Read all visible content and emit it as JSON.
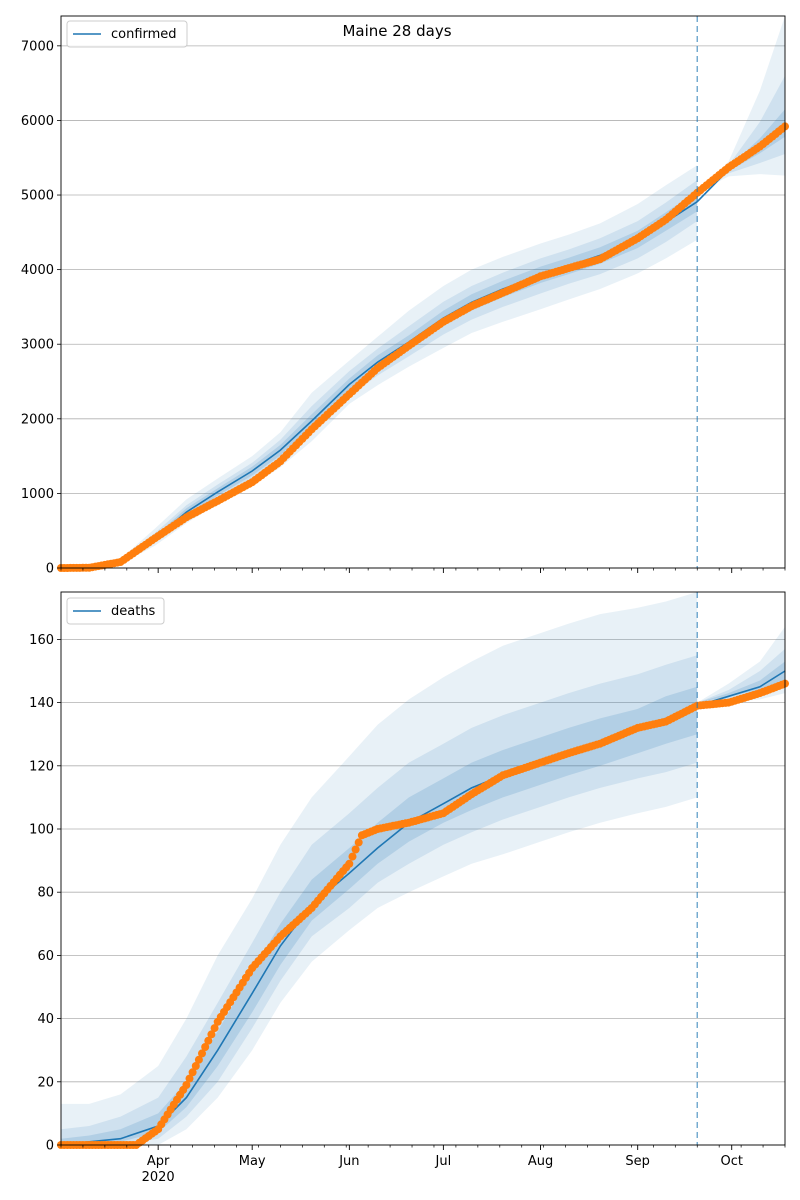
{
  "colors": {
    "model_line": "#1f77b4",
    "observed": "#ff7f0e",
    "band": "#1f77b4",
    "grid": "#b0b0b0",
    "forecast_marker": "#1f77b4"
  },
  "chart_data": [
    {
      "type": "line",
      "title": "Maine 28 days",
      "xlabel": "",
      "ylabel": "",
      "x_range": [
        "2020-03-01",
        "2020-10-18"
      ],
      "ylim": [
        0,
        7400
      ],
      "yticks": [
        0,
        1000,
        2000,
        3000,
        4000,
        5000,
        6000,
        7000
      ],
      "forecast_start": "2020-09-20",
      "grid": "horizontal",
      "legend_placement": "top-left",
      "legend": [
        "confirmed"
      ],
      "series": [
        {
          "name": "confirmed",
          "kind": "model-median",
          "x": [
            "2020-03-01",
            "2020-03-10",
            "2020-03-20",
            "2020-03-31",
            "2020-04-10",
            "2020-04-20",
            "2020-05-01",
            "2020-05-10",
            "2020-05-20",
            "2020-06-01",
            "2020-06-10",
            "2020-06-20",
            "2020-07-01",
            "2020-07-10",
            "2020-07-20",
            "2020-08-01",
            "2020-08-10",
            "2020-08-20",
            "2020-09-01",
            "2020-09-10",
            "2020-09-20",
            "2020-09-30",
            "2020-10-10",
            "2020-10-18"
          ],
          "y": [
            0,
            5,
            80,
            400,
            750,
            1020,
            1300,
            1580,
            1970,
            2460,
            2760,
            3030,
            3350,
            3560,
            3740,
            3930,
            4050,
            4190,
            4400,
            4640,
            4910,
            5340,
            5640,
            5920
          ]
        },
        {
          "name": "observed",
          "kind": "observed-points",
          "x": [
            "2020-03-01",
            "2020-03-10",
            "2020-03-20",
            "2020-03-31",
            "2020-04-10",
            "2020-04-20",
            "2020-05-01",
            "2020-05-10",
            "2020-05-20",
            "2020-06-01",
            "2020-06-10",
            "2020-06-20",
            "2020-07-01",
            "2020-07-10",
            "2020-07-20",
            "2020-08-01",
            "2020-08-10",
            "2020-08-20",
            "2020-09-01",
            "2020-09-10",
            "2020-09-20",
            "2020-09-30",
            "2020-10-10",
            "2020-10-18"
          ],
          "y": [
            0,
            3,
            80,
            400,
            680,
            900,
            1150,
            1430,
            1860,
            2330,
            2680,
            2980,
            3300,
            3510,
            3690,
            3910,
            4020,
            4140,
            4420,
            4670,
            5030,
            5370,
            5650,
            5920
          ]
        }
      ],
      "bands": [
        {
          "x": [
            "2020-03-01",
            "2020-03-10",
            "2020-03-20",
            "2020-03-31",
            "2020-04-10",
            "2020-04-20",
            "2020-05-01",
            "2020-05-10",
            "2020-05-20",
            "2020-06-01",
            "2020-06-10",
            "2020-06-20",
            "2020-07-01",
            "2020-07-10",
            "2020-07-20",
            "2020-08-01",
            "2020-08-10",
            "2020-08-20",
            "2020-09-01",
            "2020-09-10",
            "2020-09-20"
          ],
          "lower": [
            0,
            0,
            50,
            300,
            600,
            860,
            1100,
            1350,
            1700,
            2200,
            2450,
            2700,
            2950,
            3150,
            3300,
            3470,
            3600,
            3740,
            3950,
            4150,
            4400
          ],
          "upper": [
            0,
            15,
            120,
            530,
            920,
            1200,
            1500,
            1820,
            2350,
            2780,
            3100,
            3450,
            3780,
            4000,
            4170,
            4350,
            4470,
            4620,
            4880,
            5130,
            5400
          ]
        },
        {
          "x": [
            "2020-03-01",
            "2020-03-10",
            "2020-03-20",
            "2020-03-31",
            "2020-04-10",
            "2020-04-20",
            "2020-05-01",
            "2020-05-10",
            "2020-05-20",
            "2020-06-01",
            "2020-06-10",
            "2020-06-20",
            "2020-07-01",
            "2020-07-10",
            "2020-07-20",
            "2020-08-01",
            "2020-08-10",
            "2020-08-20",
            "2020-09-01",
            "2020-09-10",
            "2020-09-20"
          ],
          "lower": [
            0,
            0,
            60,
            340,
            660,
            920,
            1180,
            1440,
            1810,
            2300,
            2580,
            2840,
            3130,
            3330,
            3500,
            3680,
            3810,
            3940,
            4150,
            4370,
            4650
          ],
          "upper": [
            0,
            10,
            105,
            470,
            840,
            1120,
            1410,
            1720,
            2170,
            2640,
            2940,
            3240,
            3570,
            3780,
            3960,
            4150,
            4270,
            4420,
            4650,
            4900,
            5200
          ]
        },
        {
          "x": [
            "2020-03-01",
            "2020-03-10",
            "2020-03-20",
            "2020-03-31",
            "2020-04-10",
            "2020-04-20",
            "2020-05-01",
            "2020-05-10",
            "2020-05-20",
            "2020-06-01",
            "2020-06-10",
            "2020-06-20",
            "2020-07-01",
            "2020-07-10",
            "2020-07-20",
            "2020-08-01",
            "2020-08-10",
            "2020-08-20",
            "2020-09-01",
            "2020-09-10",
            "2020-09-20"
          ],
          "lower": [
            0,
            2,
            68,
            370,
            700,
            970,
            1240,
            1510,
            1890,
            2380,
            2670,
            2940,
            3250,
            3450,
            3630,
            3820,
            3940,
            4080,
            4290,
            4520,
            4780
          ],
          "upper": [
            0,
            8,
            92,
            430,
            800,
            1070,
            1360,
            1650,
            2060,
            2540,
            2850,
            3120,
            3450,
            3670,
            3850,
            4040,
            4160,
            4300,
            4520,
            4770,
            5050
          ]
        },
        {
          "x": [
            "2020-09-20",
            "2020-09-30",
            "2020-10-10",
            "2020-10-18"
          ],
          "lower": [
            5030,
            5250,
            5280,
            5260
          ],
          "upper": [
            5030,
            5450,
            6400,
            7400
          ]
        },
        {
          "x": [
            "2020-09-20",
            "2020-09-30",
            "2020-10-10",
            "2020-10-18"
          ],
          "lower": [
            5030,
            5290,
            5430,
            5550
          ],
          "upper": [
            5030,
            5400,
            5980,
            6600
          ]
        },
        {
          "x": [
            "2020-09-20",
            "2020-09-30",
            "2020-10-10",
            "2020-10-18"
          ],
          "lower": [
            5030,
            5320,
            5560,
            5780
          ],
          "upper": [
            5030,
            5370,
            5760,
            6150
          ]
        }
      ]
    },
    {
      "type": "line",
      "title": "",
      "xlabel": "",
      "ylabel": "",
      "x_range": [
        "2020-03-01",
        "2020-10-18"
      ],
      "ylim": [
        0,
        175
      ],
      "yticks": [
        0,
        20,
        40,
        60,
        80,
        100,
        120,
        140,
        160
      ],
      "forecast_start": "2020-09-20",
      "grid": "horizontal",
      "legend_placement": "top-left",
      "legend": [
        "deaths"
      ],
      "xtick_labels": [
        {
          "date": "2020-04-01",
          "label": "Apr",
          "sublabel": "2020"
        },
        {
          "date": "2020-05-01",
          "label": "May",
          "sublabel": ""
        },
        {
          "date": "2020-06-01",
          "label": "Jun",
          "sublabel": ""
        },
        {
          "date": "2020-07-01",
          "label": "Jul",
          "sublabel": ""
        },
        {
          "date": "2020-08-01",
          "label": "Aug",
          "sublabel": ""
        },
        {
          "date": "2020-09-01",
          "label": "Sep",
          "sublabel": ""
        },
        {
          "date": "2020-10-01",
          "label": "Oct",
          "sublabel": ""
        }
      ],
      "series": [
        {
          "name": "deaths",
          "kind": "model-median",
          "x": [
            "2020-03-01",
            "2020-03-10",
            "2020-03-20",
            "2020-04-01",
            "2020-04-10",
            "2020-04-20",
            "2020-05-01",
            "2020-05-10",
            "2020-05-20",
            "2020-06-01",
            "2020-06-10",
            "2020-06-20",
            "2020-07-01",
            "2020-07-10",
            "2020-07-20",
            "2020-08-01",
            "2020-08-10",
            "2020-08-20",
            "2020-09-01",
            "2020-09-10",
            "2020-09-20",
            "2020-09-30",
            "2020-10-10",
            "2020-10-18"
          ],
          "y": [
            0,
            1,
            2,
            6,
            15,
            30,
            48,
            63,
            76,
            86,
            94,
            102,
            108,
            113,
            117,
            121,
            124,
            127,
            132,
            135,
            139,
            142,
            145,
            150
          ]
        },
        {
          "name": "observed",
          "kind": "observed-points",
          "x": [
            "2020-03-01",
            "2020-03-10",
            "2020-03-20",
            "2020-03-25",
            "2020-04-01",
            "2020-04-10",
            "2020-04-20",
            "2020-05-01",
            "2020-05-10",
            "2020-05-20",
            "2020-06-01",
            "2020-06-05",
            "2020-06-10",
            "2020-06-20",
            "2020-07-01",
            "2020-07-10",
            "2020-07-20",
            "2020-08-01",
            "2020-08-10",
            "2020-08-20",
            "2020-09-01",
            "2020-09-10",
            "2020-09-20",
            "2020-09-30",
            "2020-10-10",
            "2020-10-18"
          ],
          "y": [
            0,
            0,
            0,
            0,
            5,
            19,
            39,
            56,
            66,
            75,
            89,
            98,
            100,
            102,
            105,
            111,
            117,
            121,
            124,
            127,
            132,
            134,
            139,
            140,
            143,
            146
          ]
        }
      ],
      "bands": [
        {
          "x": [
            "2020-03-01",
            "2020-03-10",
            "2020-03-20",
            "2020-04-01",
            "2020-04-10",
            "2020-04-20",
            "2020-05-01",
            "2020-05-10",
            "2020-05-20",
            "2020-06-01",
            "2020-06-10",
            "2020-06-20",
            "2020-07-01",
            "2020-07-10",
            "2020-07-20",
            "2020-08-01",
            "2020-08-10",
            "2020-08-20",
            "2020-09-01",
            "2020-09-10",
            "2020-09-20"
          ],
          "lower": [
            0,
            0,
            0,
            0,
            5,
            15,
            30,
            45,
            58,
            68,
            75,
            80,
            85,
            89,
            92,
            96,
            99,
            102,
            105,
            107,
            110
          ],
          "upper": [
            13,
            13,
            16,
            25,
            40,
            60,
            78,
            95,
            110,
            123,
            133,
            141,
            148,
            153,
            158,
            162,
            165,
            168,
            170,
            172,
            175
          ]
        },
        {
          "x": [
            "2020-03-01",
            "2020-03-10",
            "2020-03-20",
            "2020-04-01",
            "2020-04-10",
            "2020-04-20",
            "2020-05-01",
            "2020-05-10",
            "2020-05-20",
            "2020-06-01",
            "2020-06-10",
            "2020-06-20",
            "2020-07-01",
            "2020-07-10",
            "2020-07-20",
            "2020-08-01",
            "2020-08-10",
            "2020-08-20",
            "2020-09-01",
            "2020-09-10",
            "2020-09-20"
          ],
          "lower": [
            0,
            0,
            0,
            2,
            9,
            20,
            37,
            52,
            66,
            75,
            83,
            89,
            95,
            99,
            103,
            107,
            110,
            113,
            116,
            118,
            121
          ],
          "upper": [
            5,
            6,
            9,
            15,
            28,
            45,
            64,
            80,
            95,
            105,
            113,
            121,
            127,
            132,
            136,
            140,
            143,
            146,
            149,
            152,
            155
          ]
        },
        {
          "x": [
            "2020-03-01",
            "2020-03-10",
            "2020-03-20",
            "2020-04-01",
            "2020-04-10",
            "2020-04-20",
            "2020-05-01",
            "2020-05-10",
            "2020-05-20",
            "2020-06-01",
            "2020-06-10",
            "2020-06-20",
            "2020-07-01",
            "2020-07-10",
            "2020-07-20",
            "2020-08-01",
            "2020-08-10",
            "2020-08-20",
            "2020-09-01",
            "2020-09-10",
            "2020-09-20"
          ],
          "lower": [
            0,
            0,
            1,
            4,
            12,
            25,
            42,
            57,
            71,
            81,
            89,
            96,
            102,
            106,
            110,
            114,
            117,
            120,
            124,
            127,
            130
          ],
          "upper": [
            2,
            3,
            5,
            10,
            20,
            36,
            55,
            70,
            84,
            94,
            102,
            110,
            116,
            121,
            125,
            129,
            132,
            135,
            138,
            142,
            145
          ]
        },
        {
          "x": [
            "2020-09-20",
            "2020-09-30",
            "2020-10-10",
            "2020-10-18"
          ],
          "lower": [
            140,
            140,
            141,
            143
          ],
          "upper": [
            140,
            146,
            153,
            164
          ]
        },
        {
          "x": [
            "2020-09-20",
            "2020-09-30",
            "2020-10-10",
            "2020-10-18"
          ],
          "lower": [
            140,
            141,
            143,
            146
          ],
          "upper": [
            140,
            144,
            150,
            157
          ]
        },
        {
          "x": [
            "2020-09-20",
            "2020-09-30",
            "2020-10-10",
            "2020-10-18"
          ],
          "lower": [
            140,
            142,
            144,
            147
          ],
          "upper": [
            140,
            143,
            147,
            153
          ]
        }
      ]
    }
  ]
}
